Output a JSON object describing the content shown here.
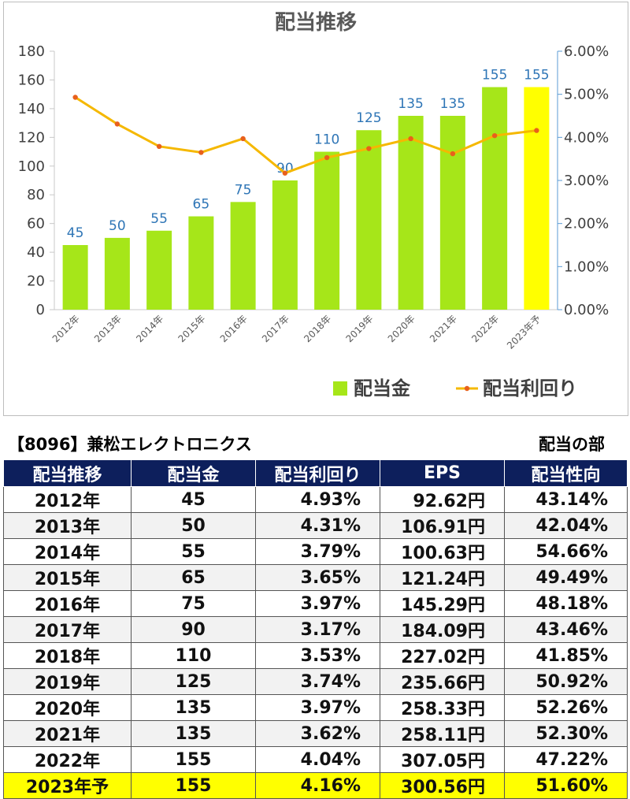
{
  "chart_data": {
    "type": "bar+line",
    "title": "配当推移",
    "categories": [
      "2012年",
      "2013年",
      "2014年",
      "2015年",
      "2016年",
      "2017年",
      "2018年",
      "2019年",
      "2020年",
      "2021年",
      "2022年",
      "2023年予"
    ],
    "series": [
      {
        "name": "配当金",
        "type": "bar",
        "axis": "left",
        "values": [
          45,
          50,
          55,
          65,
          75,
          90,
          110,
          125,
          135,
          135,
          155,
          155
        ],
        "color": "#a6e619",
        "highlight_color": "#ffff00",
        "highlight_index": 11
      },
      {
        "name": "配当利回り",
        "type": "line",
        "axis": "right",
        "values": [
          4.93,
          4.31,
          3.79,
          3.65,
          3.97,
          3.17,
          3.53,
          3.74,
          3.97,
          3.62,
          4.04,
          4.16
        ],
        "color": "#f5b800",
        "marker_color": "#e8601c"
      }
    ],
    "left_axis": {
      "ylim": [
        0,
        180
      ],
      "ticks": [
        "0",
        "20",
        "40",
        "60",
        "80",
        "100",
        "120",
        "140",
        "160",
        "180"
      ]
    },
    "right_axis": {
      "ylim": [
        0,
        6
      ],
      "ticks": [
        "0.00%",
        "1.00%",
        "2.00%",
        "3.00%",
        "4.00%",
        "5.00%",
        "6.00%"
      ]
    },
    "legend": {
      "placement": "bottom-right",
      "items": [
        "配当金",
        "配当利回り"
      ]
    },
    "grid": false
  },
  "header": {
    "company": "【8096】兼松エレクトロニクス",
    "section": "配当の部"
  },
  "table": {
    "columns": [
      "配当推移",
      "配当金",
      "配当利回り",
      "EPS",
      "配当性向"
    ],
    "rows": [
      [
        "2012年",
        "45",
        "4.93%",
        "92.62円",
        "43.14%"
      ],
      [
        "2013年",
        "50",
        "4.31%",
        "106.91円",
        "42.04%"
      ],
      [
        "2014年",
        "55",
        "3.79%",
        "100.63円",
        "54.66%"
      ],
      [
        "2015年",
        "65",
        "3.65%",
        "121.24円",
        "49.49%"
      ],
      [
        "2016年",
        "75",
        "3.97%",
        "145.29円",
        "48.18%"
      ],
      [
        "2017年",
        "90",
        "3.17%",
        "184.09円",
        "43.46%"
      ],
      [
        "2018年",
        "110",
        "3.53%",
        "227.02円",
        "41.85%"
      ],
      [
        "2019年",
        "125",
        "3.74%",
        "235.66円",
        "50.92%"
      ],
      [
        "2020年",
        "135",
        "3.97%",
        "258.33円",
        "52.26%"
      ],
      [
        "2021年",
        "135",
        "3.62%",
        "258.11円",
        "52.30%"
      ],
      [
        "2022年",
        "155",
        "4.04%",
        "307.05円",
        "47.22%"
      ],
      [
        "2023年予",
        "155",
        "4.16%",
        "300.56円",
        "51.60%"
      ]
    ],
    "highlight_row_index": 11
  }
}
